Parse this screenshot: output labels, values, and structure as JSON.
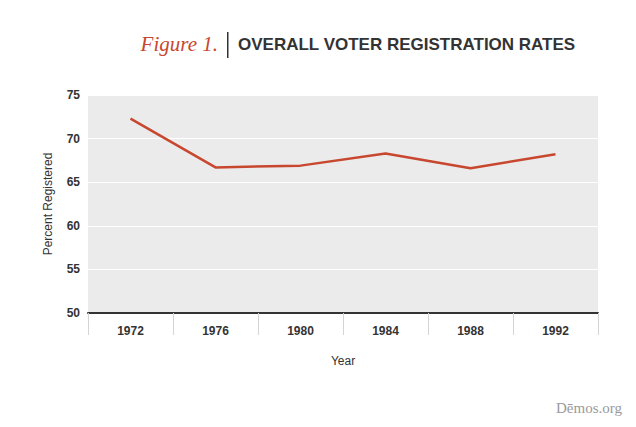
{
  "chart_data": {
    "type": "line",
    "figure_label": "Figure 1.",
    "title": "OVERALL VOTER REGISTRATION RATES",
    "x_label": "Year",
    "y_label": "Percent Registered",
    "credit": "Dēmos.org",
    "categories": [
      "1972",
      "1976",
      "1980",
      "1984",
      "1988",
      "1992"
    ],
    "values": [
      72.3,
      66.7,
      66.9,
      68.3,
      66.6,
      68.2
    ],
    "color": "#c8472f",
    "ylim": [
      50,
      75
    ],
    "yticks": [
      50,
      55,
      60,
      65,
      70,
      75
    ],
    "grid": true
  }
}
